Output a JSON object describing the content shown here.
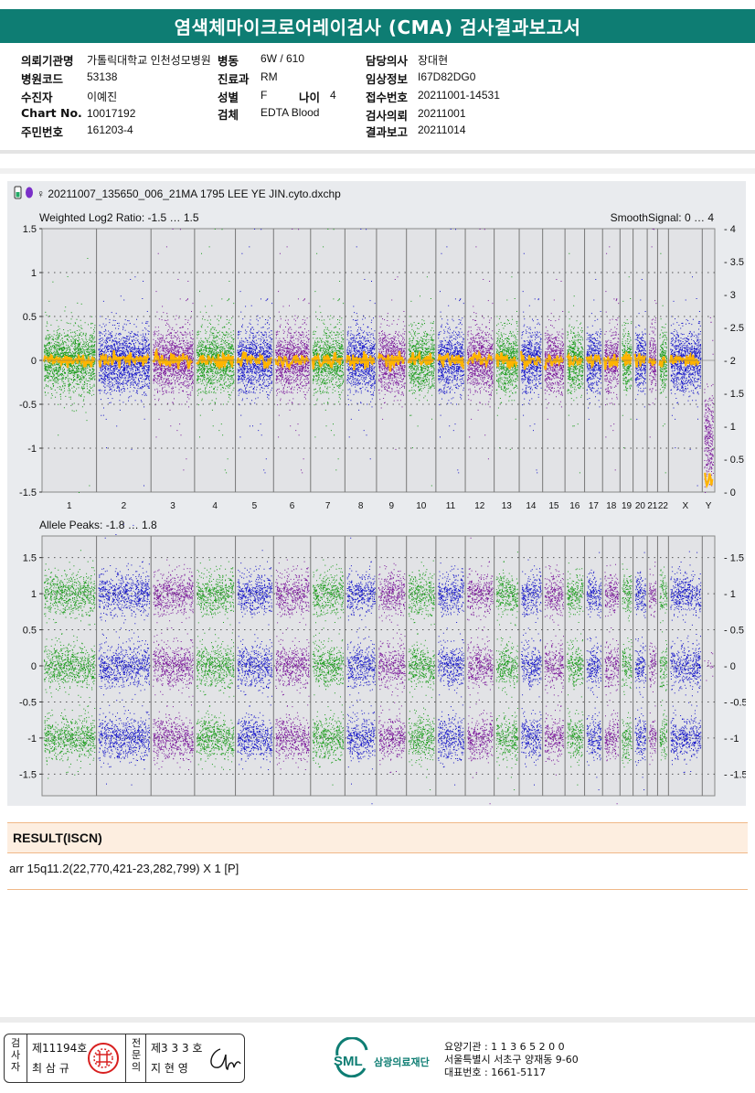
{
  "report": {
    "title": "염색체마이크로어레이검사 (CMA) 검사결과보고서",
    "fields": [
      {
        "key": "의뢰기관명",
        "value": "가톨릭대학교 인천성모병원"
      },
      {
        "key": "병원코드",
        "value": "53138"
      },
      {
        "key": "수진자",
        "value": "이예진"
      },
      {
        "key": "Chart No.",
        "value": "10017192"
      },
      {
        "key": "주민번호",
        "value": "161203-4"
      },
      {
        "key": "병동",
        "value": "6W / 610"
      },
      {
        "key": "진료과",
        "value": "RM"
      },
      {
        "key": "성별",
        "value": "F"
      },
      {
        "key": "나이",
        "value": "4"
      },
      {
        "key": "검체",
        "value": "EDTA Blood"
      },
      {
        "key": "담당의사",
        "value": "장대현"
      },
      {
        "key": "임상정보",
        "value": "I67D82DG0"
      },
      {
        "key": "접수번호",
        "value": "20211001-14531"
      },
      {
        "key": "검사의뢰",
        "value": "20211001"
      },
      {
        "key": "결과보고",
        "value": "20211014"
      }
    ]
  },
  "plot": {
    "file_label": "♀ 20211007_135650_006_21MA 1795 LEE YE JIN.cyto.dxchp",
    "top": {
      "label": "Weighted Log2 Ratio: -1.5 … 1.5",
      "right_label": "SmoothSignal: 0 … 4",
      "left_ticks": [
        "1.5",
        "1",
        "0.5",
        "0",
        "-0.5",
        "-1",
        "-1.5"
      ],
      "right_ticks": [
        "4",
        "3.5",
        "3",
        "2.5",
        "2",
        "1.5",
        "1",
        "0.5",
        "0"
      ]
    },
    "bottom": {
      "label": "Allele Peaks: -1.8 … 1.8",
      "left_ticks": [
        "1.5",
        "1",
        "0.5",
        "0",
        "-0.5",
        "-1",
        "-1.5"
      ],
      "right_ticks": [
        "1.5",
        "1",
        "0.5",
        "0",
        "-0.5",
        "-1",
        "-1.5"
      ]
    },
    "chromosomes": [
      "1",
      "2",
      "3",
      "4",
      "5",
      "6",
      "7",
      "8",
      "9",
      "10",
      "11",
      "12",
      "13",
      "14",
      "15",
      "16",
      "17",
      "18",
      "19",
      "20",
      "21",
      "22",
      "X",
      "Y"
    ],
    "colors": {
      "green": "#1a9c1a",
      "blue": "#1414c8",
      "purple": "#7a169a",
      "orange": "#ffb400",
      "panel_bg": "#e9ebee",
      "plot_bg": "#e2e3e6"
    }
  },
  "result": {
    "heading": "RESULT(ISCN)",
    "text": "arr 15q11.2(22,770,421-23,282,799) X 1 [P]"
  },
  "footer": {
    "sig1_label": "검사자",
    "sig1_no": "제11194호",
    "sig1_name": "최 삼 규",
    "sig2_label": "전문의",
    "sig2_no": "제3 3 3 호",
    "sig2_name": "지 현 영",
    "org_logo": "SML",
    "org_name": "삼광의료재단",
    "org_lines": [
      "요양기관 : 1 1 3 6 5 2 0 0",
      "서울특별시 서초구 양재동 9-60",
      "대표번호 : 1661-5117"
    ]
  }
}
